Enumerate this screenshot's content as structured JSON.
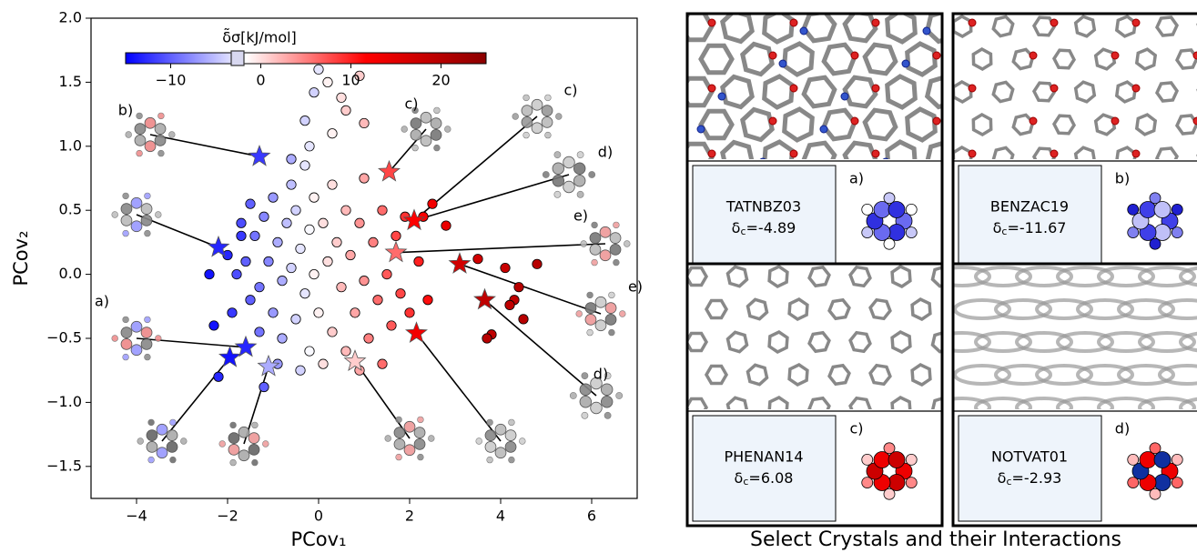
{
  "chart_data": {
    "type": "scatter",
    "x_label": "PCov₁",
    "y_label": "PCov₂",
    "xlim": [
      -5,
      7
    ],
    "ylim": [
      -1.75,
      2.0
    ],
    "xticks": [
      {
        "value": -4,
        "label": "−4"
      },
      {
        "value": -2,
        "label": "−2"
      },
      0,
      2,
      4,
      6
    ],
    "yticks": [
      {
        "value": -1.5,
        "label": "−1.5"
      },
      {
        "value": -1.0,
        "label": "−1.0"
      },
      {
        "value": -0.5,
        "label": "−0.5"
      },
      {
        "value": 0.0,
        "label": "0.0"
      },
      0.5,
      {
        "value": 1.0,
        "label": "1.0"
      },
      1.5,
      {
        "value": 2.0,
        "label": "2.0"
      }
    ],
    "colorbar": {
      "label": "δ̃σ[kJ/mol]",
      "lim": [
        -15,
        25
      ],
      "ticks": [
        {
          "value": -10,
          "label": "−10"
        },
        0,
        10,
        20
      ],
      "colors": [
        "#0000ff",
        "#ffffff",
        "#ff0000",
        "#8b0000"
      ]
    },
    "points": {
      "x": [
        -1.8,
        -1.6,
        -1.5,
        -1.4,
        -1.3,
        -1.2,
        -1.1,
        -1.0,
        -1.0,
        -0.9,
        -0.8,
        -0.8,
        -0.7,
        -0.6,
        -0.6,
        -0.5,
        -0.5,
        -0.4,
        -0.3,
        -0.3,
        -0.2,
        -0.2,
        -0.1,
        -0.1,
        0.0,
        0.1,
        0.1,
        0.2,
        0.3,
        0.3,
        0.4,
        0.5,
        0.6,
        0.6,
        0.7,
        0.8,
        0.9,
        1.0,
        1.0,
        1.1,
        1.2,
        1.3,
        1.4,
        1.5,
        1.6,
        1.7,
        1.8,
        1.9,
        2.0,
        2.2,
        2.4,
        -1.9,
        -1.7,
        -1.3,
        -0.9,
        -0.4,
        0.9,
        1.4,
        -1.5,
        -0.2,
        0.0,
        0.2,
        -0.1,
        0.5,
        0.9,
        0.6,
        1.0,
        0.3,
        -0.3,
        -0.6,
        3.5,
        4.8,
        4.4,
        4.3,
        4.5,
        3.8,
        3.7,
        2.8,
        2.5,
        2.3,
        4.1,
        4.2,
        -2.3,
        -2.0,
        -1.7,
        -2.2,
        -1.2,
        -2.4
      ],
      "y": [
        0.0,
        0.1,
        -0.2,
        0.3,
        -0.1,
        0.45,
        0.1,
        -0.3,
        0.6,
        0.25,
        -0.05,
        -0.5,
        0.4,
        0.7,
        0.05,
        -0.35,
        0.5,
        0.2,
        -0.15,
        0.85,
        -0.6,
        0.35,
        0.6,
        0.0,
        -0.3,
        0.4,
        -0.7,
        0.1,
        -0.45,
        0.7,
        0.25,
        -0.1,
        0.5,
        -0.6,
        0.15,
        -0.3,
        0.4,
        -0.05,
        0.75,
        -0.5,
        0.25,
        -0.2,
        0.5,
        0.0,
        -0.4,
        0.3,
        -0.15,
        0.45,
        -0.3,
        0.1,
        -0.2,
        -0.3,
        0.4,
        -0.45,
        -0.7,
        -0.75,
        -0.75,
        -0.7,
        0.55,
        1.0,
        1.6,
        1.5,
        1.42,
        1.38,
        1.55,
        1.28,
        1.18,
        1.1,
        1.2,
        0.9,
        0.12,
        0.08,
        -0.1,
        -0.2,
        -0.35,
        -0.47,
        -0.5,
        0.38,
        0.55,
        0.45,
        0.05,
        -0.24,
        -0.4,
        0.15,
        0.3,
        -0.8,
        -0.88,
        0.0
      ],
      "c": [
        -11,
        -10,
        -10,
        -9,
        -9,
        -8,
        -8,
        -7,
        -7,
        -6,
        -6,
        -6,
        -5,
        -5,
        -4,
        -4,
        -4,
        -3,
        -3,
        -3,
        -2,
        -2,
        -1,
        -1,
        -1,
        0,
        0,
        0,
        1,
        0,
        1,
        2,
        2,
        2,
        3,
        3,
        4,
        4,
        3,
        5,
        5,
        6,
        6,
        7,
        7,
        8,
        8,
        9,
        9,
        10,
        11,
        -12,
        -11,
        -9,
        -7,
        -4,
        3,
        6,
        -10,
        -3,
        -3,
        -1,
        -4,
        0,
        1,
        1,
        2,
        -1,
        -4,
        -6,
        17,
        20,
        20,
        19,
        20,
        19,
        20,
        14,
        13,
        12,
        18,
        19,
        -14,
        -13,
        -12,
        -13,
        -10,
        -14
      ]
    },
    "highlighted": {
      "x": [
        -1.3,
        -2.2,
        -1.6,
        -1.95,
        -1.1,
        1.55,
        2.1,
        1.7,
        3.1,
        3.65,
        2.15,
        0.8
      ],
      "y": [
        0.92,
        0.21,
        -0.57,
        -0.65,
        -0.72,
        0.8,
        0.42,
        0.17,
        0.08,
        -0.2,
        -0.46,
        -0.68
      ],
      "c": [
        -12,
        -13,
        -13,
        -14,
        -6,
        8,
        12,
        6,
        17,
        19,
        13,
        1
      ]
    },
    "annotations": [
      "b)",
      "c)",
      "c)",
      "d)",
      "e)",
      "e)",
      "a)",
      "d)"
    ]
  },
  "crystals": [
    {
      "name": "TATNBZ03",
      "symbol": "δ",
      "subscript": "c",
      "text": "=-4.89",
      "letter": "a)"
    },
    {
      "name": "BENZAC19",
      "symbol": "δ",
      "subscript": "c",
      "text": "=-11.67",
      "letter": "b)"
    },
    {
      "name": "PHENAN14",
      "symbol": "δ",
      "subscript": "c",
      "text": "=6.08",
      "letter": "c)"
    },
    {
      "name": "NOTVAT01",
      "symbol": "δ",
      "subscript": "c",
      "text": "=-2.93",
      "letter": "d)"
    }
  ],
  "caption": "Select Crystals and their Interactions"
}
